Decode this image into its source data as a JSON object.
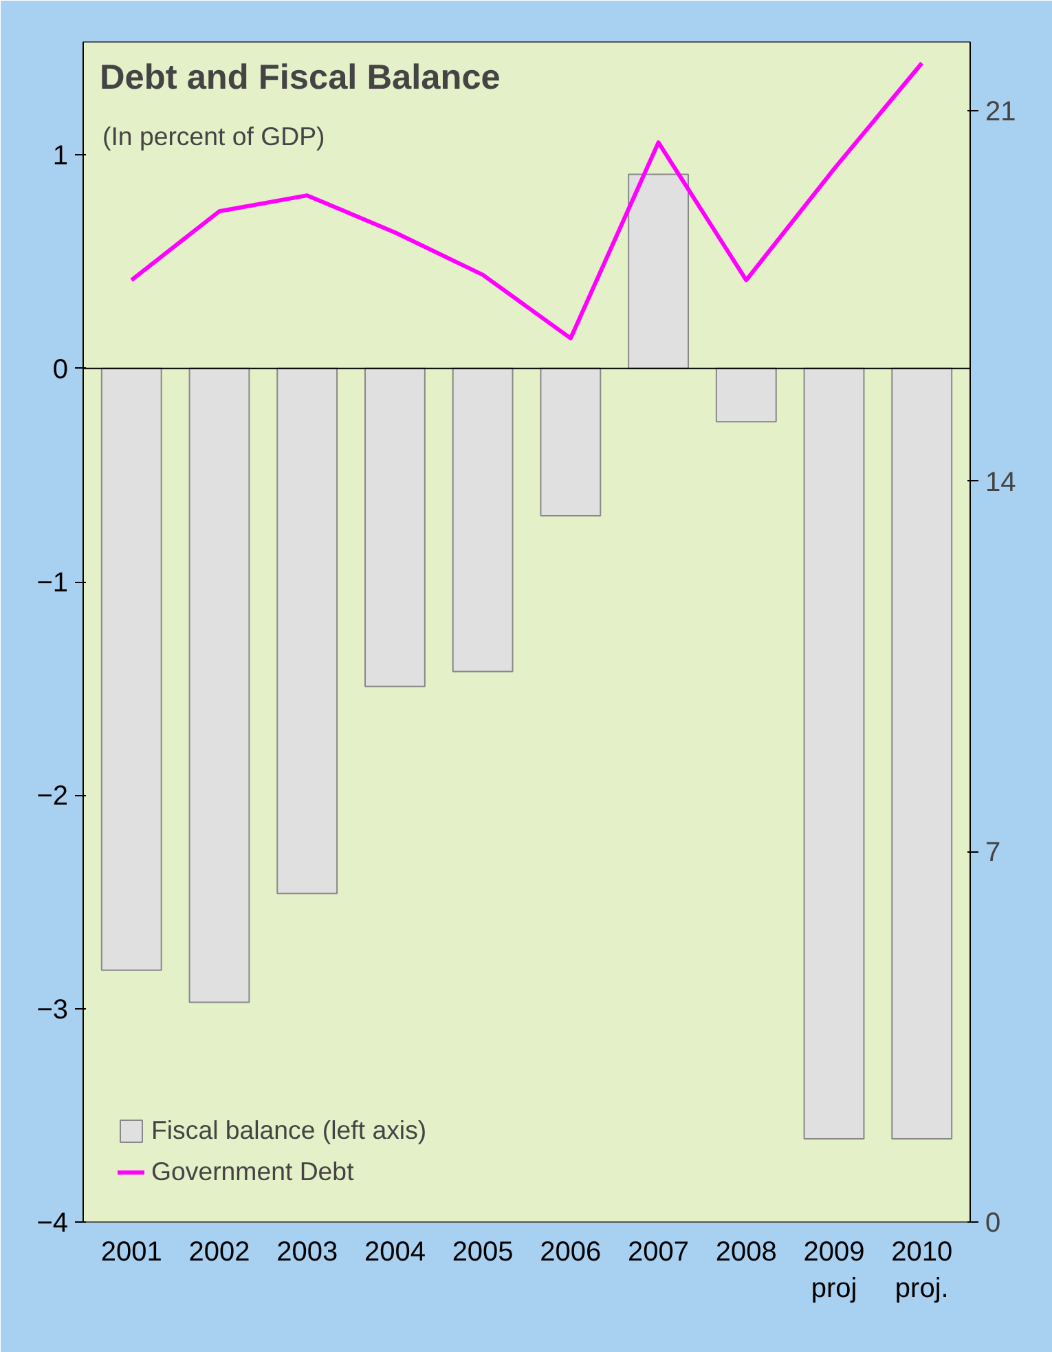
{
  "chart_data": {
    "type": "bar",
    "title": "Debt and Fiscal Balance",
    "subtitle": "(In percent of GDP)",
    "categories": [
      "2001",
      "2002",
      "2003",
      "2004",
      "2005",
      "2006",
      "2007",
      "2008",
      "2009\nproj",
      "2010\nproj."
    ],
    "series": [
      {
        "name": "Fiscal balance (left axis)",
        "color": "#e0e0e0",
        "values": [
          -2.82,
          -2.97,
          -2.46,
          -1.49,
          -1.42,
          -0.69,
          0.91,
          -0.25,
          -3.61,
          -3.61
        ]
      },
      {
        "name": "Government Debt",
        "type": "line",
        "axis": "y2",
        "color": "#ff00ff",
        "values": [
          17.8,
          19.1,
          19.4,
          18.7,
          17.9,
          16.7,
          20.4,
          17.8,
          19.9,
          21.9
        ]
      }
    ],
    "ylim": [
      -4,
      1.53
    ],
    "yticks": [
      -4,
      -3,
      -2,
      -1,
      0,
      1
    ],
    "y2lim": [
      0,
      22.3
    ],
    "y2ticks": [
      0,
      7,
      14,
      21
    ],
    "ref_lines": [
      {
        "axis": "y",
        "value": 0,
        "color": "#000000"
      }
    ],
    "grid": false,
    "legend": "bottom left",
    "marker": "none",
    "line_style": "solid"
  }
}
